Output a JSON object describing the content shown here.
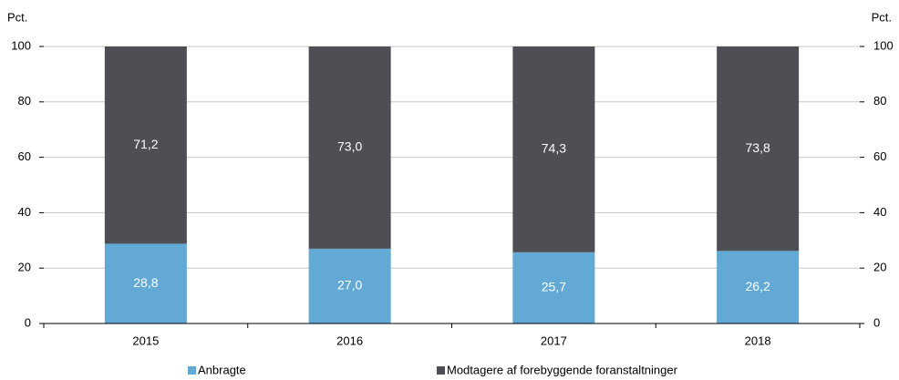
{
  "chart_data": {
    "type": "stacked-bar",
    "y_label": "Pct.",
    "y2_label": "Pct.",
    "categories": [
      "2015",
      "2016",
      "2017",
      "2018"
    ],
    "series": [
      {
        "name": "Anbragte",
        "color": "#62a9d6",
        "values": [
          28.8,
          27.0,
          25.7,
          26.2
        ],
        "value_labels": [
          "28,8",
          "27,0",
          "25,7",
          "26,2"
        ]
      },
      {
        "name": "Modtagere af forebyggende foranstaltninger",
        "color": "#4e4f54",
        "values": [
          71.2,
          73.0,
          74.3,
          73.8
        ],
        "value_labels": [
          "71,2",
          "73,0",
          "74,3",
          "73,8"
        ]
      }
    ],
    "ylim": [
      0,
      100
    ],
    "yticks": [
      0,
      20,
      40,
      60,
      80,
      100
    ],
    "y2lim": [
      0,
      100
    ],
    "y2ticks": [
      0,
      20,
      40,
      60,
      80,
      100
    ],
    "grid": true
  }
}
